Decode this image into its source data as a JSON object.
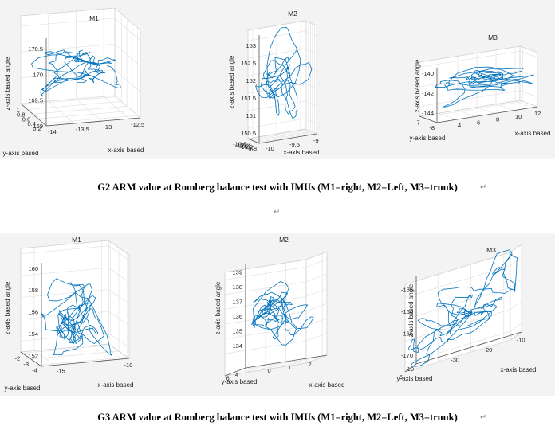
{
  "captions": {
    "g2": "G2  ARM value at Romberg  balance  test  with  IMUs  (M1=right,  M2=Left,  M3=trunk)",
    "g3": "G3  ARM value at Romberg  balance  test  with  IMUs  (M1=right,  M2=Left,  M3=trunk)",
    "mark": "↵"
  },
  "chart_data": [
    {
      "type": "line3d",
      "group": "G2",
      "title": "M1",
      "xlabel": "x-axis based",
      "ylabel": "y-axis based",
      "zlabel": "z-axis based angle",
      "xlim": [
        -14,
        -12.3
      ],
      "ylim": [
        0.1,
        1.05
      ],
      "zlim": [
        169,
        170.7
      ],
      "xticks": [
        -14,
        -13.5,
        -13,
        -12.5
      ],
      "yticks": [
        0.2,
        0.4,
        0.6,
        0.8,
        1
      ],
      "zticks": [
        169,
        169.5,
        170,
        170.5
      ],
      "color": "#0072bd",
      "series": {
        "center": [
          -13.2,
          0.55,
          169.95
        ],
        "spread": [
          0.45,
          0.25,
          0.28
        ],
        "points": 170,
        "seed": 11
      }
    },
    {
      "type": "line3d",
      "group": "G2",
      "title": "M2",
      "xlabel": "x-axis based",
      "ylabel": "",
      "zlabel": "z-axis based angle",
      "xlim": [
        -10.1,
        -8.9
      ],
      "ylim": [
        -9.8,
        -10.9
      ],
      "zlim": [
        150.2,
        153.3
      ],
      "xticks": [
        -10,
        -9.5,
        -9
      ],
      "yticks": [
        -9.8,
        -10,
        -10.2,
        -10.4,
        -10.6,
        -10.8
      ],
      "zticks": [
        150.5,
        151,
        151.5,
        152,
        152.5,
        153
      ],
      "color": "#0072bd",
      "series": {
        "center": [
          -9.5,
          -10.3,
          151.8
        ],
        "spread": [
          0.25,
          0.25,
          0.7
        ],
        "points": 160,
        "seed": 23
      }
    },
    {
      "type": "line3d",
      "group": "G2",
      "title": "M3",
      "xlabel": "x-axis based",
      "ylabel": "y-axis based",
      "zlabel": "z-axis based angle",
      "xlim": [
        2,
        12.5
      ],
      "ylim": [
        -8,
        -6.8
      ],
      "zlim": [
        -145,
        -139.5
      ],
      "xticks": [
        4,
        6,
        8,
        10,
        12
      ],
      "yticks": [
        -8,
        -7
      ],
      "zticks": [
        -144,
        -142,
        -140
      ],
      "color": "#0072bd",
      "series": {
        "center": [
          7.5,
          -7.4,
          -142
        ],
        "spread": [
          2.6,
          0.3,
          0.9
        ],
        "points": 200,
        "seed": 37
      }
    },
    {
      "type": "line3d",
      "group": "G3",
      "title": "M1",
      "xlabel": "x-axis based",
      "ylabel": "y-axis based",
      "zlabel": "z-axis based angle",
      "xlim": [
        -16,
        -9.5
      ],
      "ylim": [
        -4.2,
        -1.8
      ],
      "zlim": [
        151,
        160.5
      ],
      "xticks": [
        -15,
        -10
      ],
      "yticks": [
        -4,
        -3,
        -2
      ],
      "zticks": [
        152,
        154,
        156,
        158,
        160
      ],
      "color": "#0072bd",
      "series": {
        "center": [
          -12.5,
          -3,
          154
        ],
        "spread": [
          1.4,
          0.5,
          2.2
        ],
        "points": 210,
        "seed": 53
      }
    },
    {
      "type": "line3d",
      "group": "G3",
      "title": "M2",
      "xlabel": "x-axis based",
      "ylabel": "y-axis based",
      "zlabel": "z-axis based angle",
      "xlim": [
        -1,
        3
      ],
      "ylim": [
        3,
        7.5
      ],
      "zlim": [
        132.5,
        139.5
      ],
      "xticks": [
        0,
        1,
        2
      ],
      "yticks": [
        4,
        6
      ],
      "zticks": [
        134,
        135,
        136,
        137,
        138,
        139
      ],
      "color": "#0072bd",
      "series": {
        "center": [
          1,
          5.2,
          135.8
        ],
        "spread": [
          0.8,
          0.9,
          1.4
        ],
        "points": 200,
        "seed": 71
      }
    },
    {
      "type": "line3d",
      "group": "G3",
      "title": "M3",
      "xlabel": "x-axis based",
      "ylabel": "y-axis based",
      "zlabel": "z-axis based angle",
      "xlim": [
        -40,
        -8
      ],
      "ylim": [
        -10,
        -5
      ],
      "zlim": [
        -172,
        -152
      ],
      "xticks": [
        -30,
        -20,
        -10
      ],
      "yticks": [
        -10,
        -5
      ],
      "zticks": [
        -170,
        -165,
        -160,
        -155
      ],
      "color": "#0072bd",
      "series": {
        "center": [
          -24,
          -7.5,
          -163
        ],
        "spread": [
          7,
          1.2,
          4.2
        ],
        "points": 220,
        "seed": 89,
        "trend": true
      }
    }
  ]
}
